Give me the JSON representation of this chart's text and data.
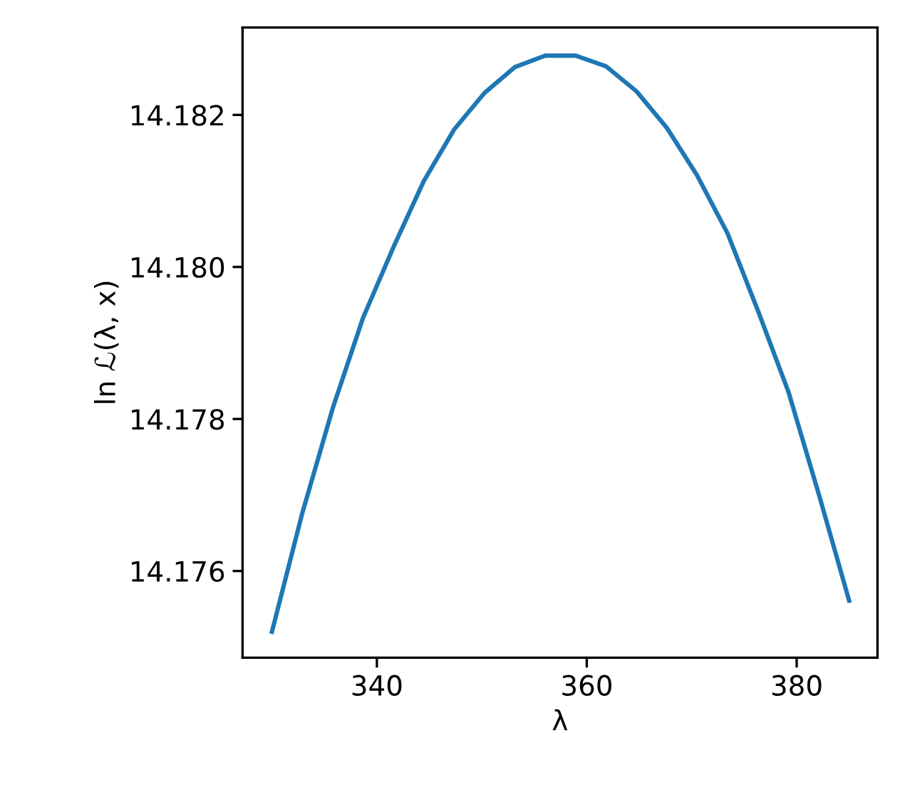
{
  "chart_data": {
    "type": "line",
    "xlabel": "λ",
    "ylabel": "ln ℒ(λ, x)",
    "x": [
      330.0,
      332.89,
      335.79,
      338.68,
      341.58,
      344.47,
      347.37,
      350.26,
      353.16,
      356.05,
      358.95,
      361.84,
      364.74,
      367.63,
      370.53,
      373.42,
      376.32,
      379.21,
      382.11,
      385.0
    ],
    "series": [
      {
        "color": "#1f77b4",
        "values": [
          14.1752,
          14.17676,
          14.17814,
          14.17933,
          14.18026,
          14.18113,
          14.18181,
          14.18229,
          14.18263,
          14.18278,
          14.18278,
          14.18264,
          14.18231,
          14.18183,
          14.1812,
          14.18044,
          14.17942,
          14.17836,
          14.17701,
          14.17561
        ]
      }
    ],
    "xlim": [
      327.2,
      387.7
    ],
    "ylim": [
      14.17486,
      14.18315
    ],
    "xticks": [
      340,
      360,
      380
    ],
    "yticks": [
      14.176,
      14.178,
      {
        "value": 14.18,
        "label": "14.180"
      },
      14.182
    ],
    "grid": false,
    "legend": false,
    "marker": "none",
    "line_style": "solid"
  }
}
